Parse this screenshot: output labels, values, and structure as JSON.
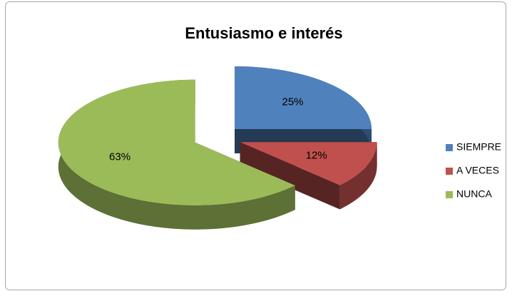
{
  "chart_data": {
    "type": "pie",
    "title": "Entusiasmo e interés",
    "categories": [
      "SIEMPRE",
      "A VECES",
      "NUNCA"
    ],
    "values": [
      25,
      12,
      63
    ],
    "value_labels": [
      "25%",
      "12%",
      "63%"
    ],
    "colors": [
      "#4f81bd",
      "#c0504d",
      "#9bbb59"
    ],
    "legend": "right"
  }
}
